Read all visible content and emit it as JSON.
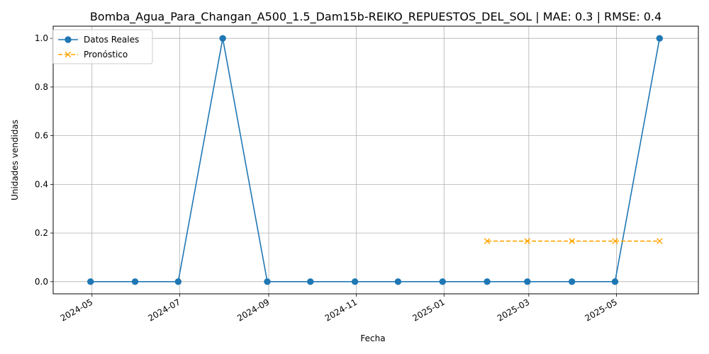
{
  "chart_data": {
    "type": "line",
    "title": "Bomba_Agua_Para_Changan_A500_1.5_Dam15b-REIKO_REPUESTOS_DEL_SOL | MAE: 0.3 | RMSE: 0.4",
    "xlabel": "Fecha",
    "ylabel": "Unidades vendidas",
    "ylim": [
      -0.05,
      1.05
    ],
    "yticks": [
      0.0,
      0.2,
      0.4,
      0.6,
      0.8,
      1.0
    ],
    "ytick_labels": [
      "0.0",
      "0.2",
      "0.4",
      "0.6",
      "0.8",
      "1.0"
    ],
    "xlim": [
      "2024-04-04",
      "2025-06-27"
    ],
    "xticks": [
      "2024-05-01",
      "2024-07-01",
      "2024-09-01",
      "2024-11-01",
      "2025-01-01",
      "2025-03-01",
      "2025-05-01"
    ],
    "xtick_labels": [
      "2024-05",
      "2024-07",
      "2024-09",
      "2024-11",
      "2025-01",
      "2025-03",
      "2025-05"
    ],
    "grid": true,
    "legend_position": "upper-left",
    "series": [
      {
        "name": "Datos Reales",
        "color": "#1f77b4",
        "marker": "circle",
        "linestyle": "solid",
        "x": [
          "2024-04-30",
          "2024-05-31",
          "2024-06-30",
          "2024-07-31",
          "2024-08-31",
          "2024-09-30",
          "2024-10-31",
          "2024-11-30",
          "2024-12-31",
          "2025-01-31",
          "2025-02-28",
          "2025-03-31",
          "2025-04-30",
          "2025-05-31"
        ],
        "values": [
          0,
          0,
          0,
          1,
          0,
          0,
          0,
          0,
          0,
          0,
          0,
          0,
          0,
          1
        ]
      },
      {
        "name": "Pronóstico",
        "color": "#ffa500",
        "marker": "x",
        "linestyle": "dashed",
        "x": [
          "2025-01-31",
          "2025-02-28",
          "2025-03-31",
          "2025-04-30",
          "2025-05-31"
        ],
        "values": [
          0.1667,
          0.1667,
          0.1667,
          0.1667,
          0.1667
        ]
      }
    ]
  }
}
